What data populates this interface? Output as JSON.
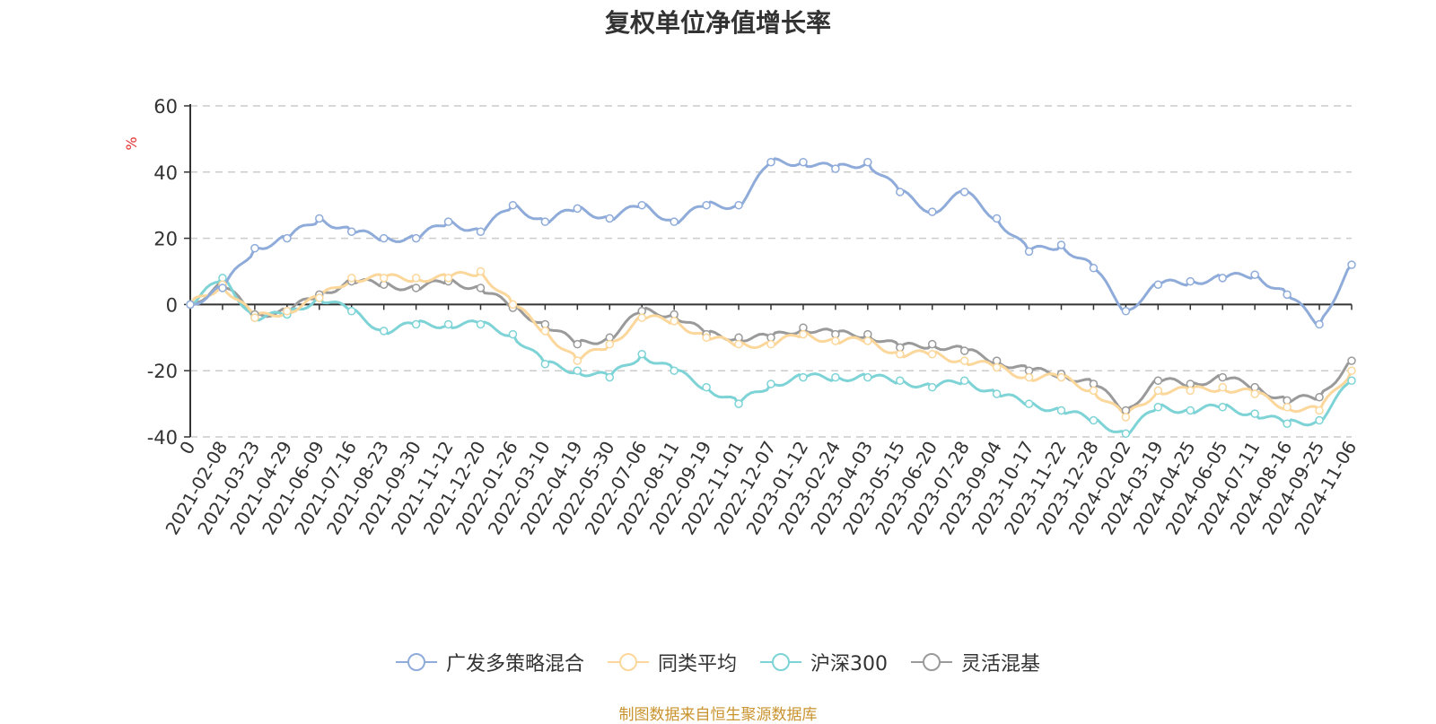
{
  "chart_data": {
    "type": "line",
    "title": "复权单位净值增长率",
    "ylabel": "%",
    "ylim": [
      -40,
      60
    ],
    "yticks": [
      60,
      40,
      20,
      0,
      -20,
      -40
    ],
    "grid": true,
    "legend_position": "bottom",
    "x_ticks": [
      "0",
      "2021-02-08",
      "2021-03-23",
      "2021-04-29",
      "2021-06-09",
      "2021-07-16",
      "2021-08-23",
      "2021-09-30",
      "2021-11-12",
      "2021-12-20",
      "2022-01-26",
      "2022-03-10",
      "2022-04-19",
      "2022-05-30",
      "2022-07-06",
      "2022-08-11",
      "2022-09-19",
      "2022-11-01",
      "2022-12-07",
      "2023-01-12",
      "2023-02-24",
      "2023-04-03",
      "2023-05-15",
      "2023-06-20",
      "2023-07-28",
      "2023-09-04",
      "2023-10-17",
      "2023-11-22",
      "2023-12-28",
      "2024-02-02",
      "2024-03-19",
      "2024-04-25",
      "2024-06-05",
      "2024-07-11",
      "2024-08-16",
      "2024-09-25",
      "2024-11-06"
    ],
    "series": [
      {
        "name": "广发多策略混合",
        "color": "#8eabd9",
        "values": [
          0,
          5,
          17,
          20,
          26,
          22,
          20,
          20,
          25,
          22,
          30,
          25,
          29,
          26,
          30,
          25,
          30,
          30,
          43,
          43,
          41,
          43,
          34,
          28,
          34,
          26,
          16,
          18,
          11,
          -2,
          6,
          7,
          8,
          9,
          3,
          -6,
          12
        ]
      },
      {
        "name": "同类平均",
        "color": "#fcd79b",
        "values": [
          0,
          6,
          -4,
          -2,
          2,
          8,
          8,
          8,
          8,
          10,
          0,
          -8,
          -17,
          -12,
          -4,
          -5,
          -10,
          -12,
          -12,
          -9,
          -11,
          -11,
          -15,
          -15,
          -17,
          -19,
          -22,
          -22,
          -26,
          -34,
          -26,
          -26,
          -25,
          -27,
          -31,
          -32,
          -20
        ]
      },
      {
        "name": "沪深300",
        "color": "#7dd3d6",
        "values": [
          0,
          8,
          -4,
          -3,
          2,
          -2,
          -8,
          -6,
          -6,
          -6,
          -9,
          -18,
          -20,
          -22,
          -15,
          -20,
          -25,
          -30,
          -24,
          -22,
          -22,
          -22,
          -23,
          -25,
          -23,
          -27,
          -30,
          -32,
          -35,
          -39,
          -31,
          -32,
          -31,
          -33,
          -36,
          -35,
          -23
        ]
      },
      {
        "name": "灵活混基",
        "color": "#9a9a9a",
        "values": [
          0,
          6,
          -3,
          -2,
          3,
          7,
          6,
          5,
          7,
          5,
          -1,
          -6,
          -12,
          -10,
          -2,
          -3,
          -9,
          -10,
          -10,
          -7,
          -9,
          -9,
          -13,
          -12,
          -14,
          -17,
          -20,
          -21,
          -24,
          -32,
          -23,
          -24,
          -22,
          -25,
          -29,
          -28,
          -17
        ]
      }
    ]
  },
  "source_note": "制图数据来自恒生聚源数据库"
}
